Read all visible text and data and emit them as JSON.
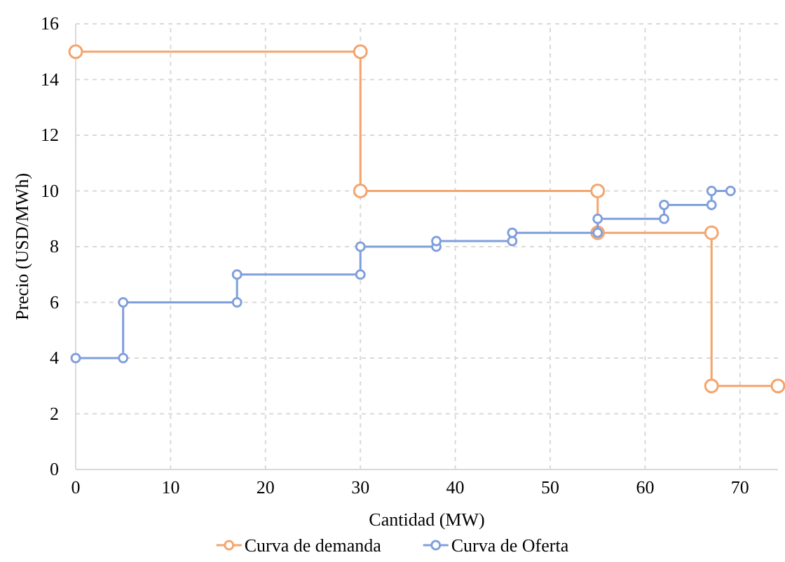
{
  "chart_data": {
    "type": "line",
    "xlabel": "Cantidad (MW)",
    "ylabel": "Precio (USD/MWh)",
    "xlim": [
      0,
      74
    ],
    "xticks": [
      0,
      10,
      20,
      30,
      40,
      50,
      60,
      70
    ],
    "ylim": [
      0,
      16
    ],
    "yticks": [
      0,
      2,
      4,
      6,
      8,
      10,
      12,
      14,
      16
    ],
    "grid": true,
    "legend": "bottom",
    "marker": "circle",
    "line_style": "solid",
    "series": [
      {
        "name": "Curva de demanda",
        "color": "#f4a46c",
        "x": [
          0,
          30,
          30,
          55,
          55,
          67,
          67,
          74
        ],
        "values": [
          15,
          15,
          10,
          10,
          8.5,
          8.5,
          3,
          3
        ]
      },
      {
        "name": "Curva de Oferta",
        "color": "#7f9fdc",
        "x": [
          0,
          5,
          5,
          17,
          17,
          30,
          30,
          38,
          38,
          46,
          46,
          55,
          55,
          62,
          62,
          67,
          67,
          69
        ],
        "values": [
          4,
          4,
          6,
          6,
          7,
          7,
          8,
          8,
          8.2,
          8.2,
          8.5,
          8.5,
          9,
          9,
          9.5,
          9.5,
          10,
          10
        ]
      }
    ]
  }
}
